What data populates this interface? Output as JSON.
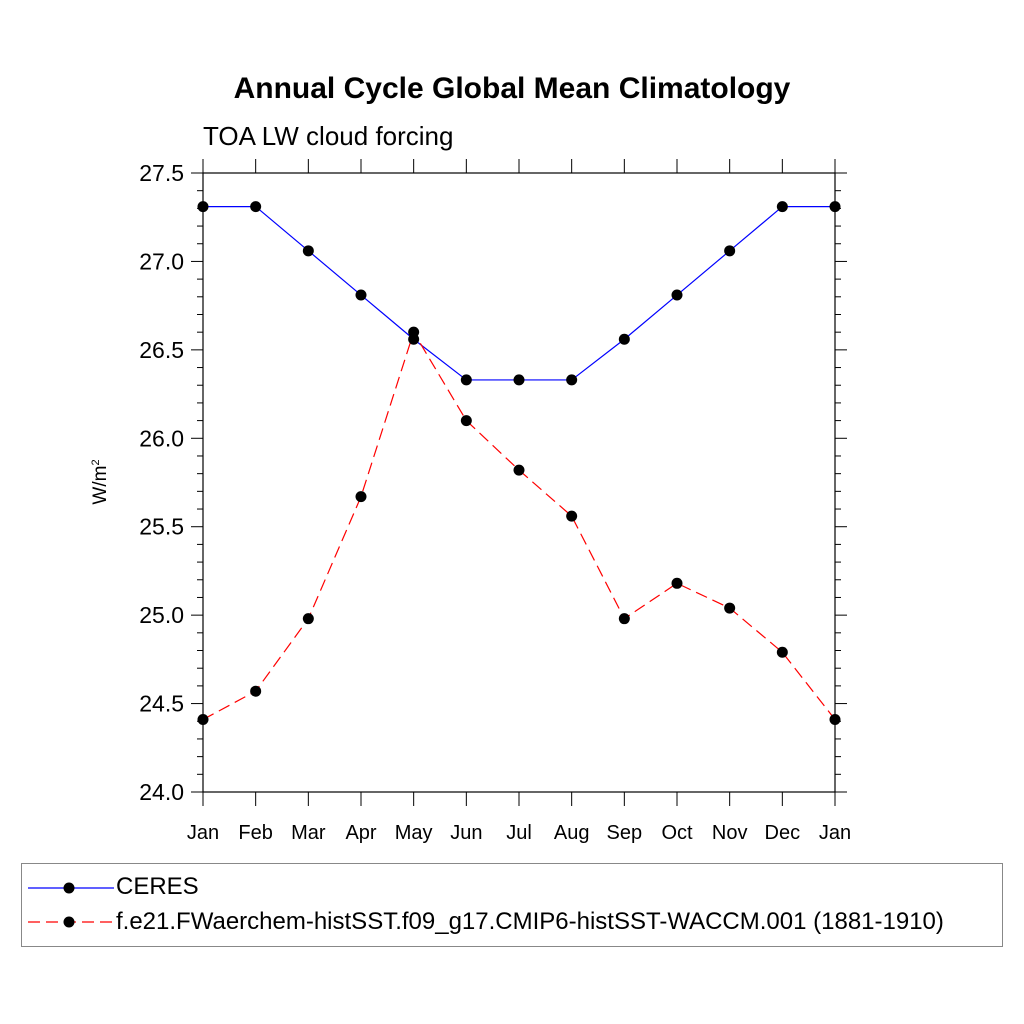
{
  "chart_data": {
    "type": "line",
    "title": "Annual Cycle Global Mean Climatology",
    "subtitle": "TOA LW cloud forcing",
    "ylabel_base": "W/m",
    "ylabel_sup": "2",
    "xlabel": "",
    "categories": [
      "Jan",
      "Feb",
      "Mar",
      "Apr",
      "May",
      "Jun",
      "Jul",
      "Aug",
      "Sep",
      "Oct",
      "Nov",
      "Dec",
      "Jan"
    ],
    "ylim": [
      24.0,
      27.5
    ],
    "yticks": [
      24.0,
      24.5,
      25.0,
      25.5,
      26.0,
      26.5,
      27.0,
      27.5
    ],
    "ytick_labels": [
      "24.0",
      "24.5",
      "25.0",
      "25.5",
      "26.0",
      "26.5",
      "27.0",
      "27.5"
    ],
    "grid": false,
    "legend_position": "bottom",
    "series": [
      {
        "name": "CERES",
        "color": "#0000ff",
        "dash": "solid",
        "values": [
          27.31,
          27.31,
          27.06,
          26.81,
          26.56,
          26.33,
          26.33,
          26.33,
          26.56,
          26.81,
          27.06,
          27.31,
          27.31
        ]
      },
      {
        "name": "f.e21.FWaerchem-histSST.f09_g17.CMIP6-histSST-WACCM.001 (1881-1910)",
        "color": "#ff0000",
        "dash": "dashed",
        "values": [
          24.41,
          24.57,
          24.98,
          25.67,
          26.6,
          26.1,
          25.82,
          25.56,
          24.98,
          25.18,
          25.04,
          24.79,
          24.41
        ]
      }
    ]
  }
}
